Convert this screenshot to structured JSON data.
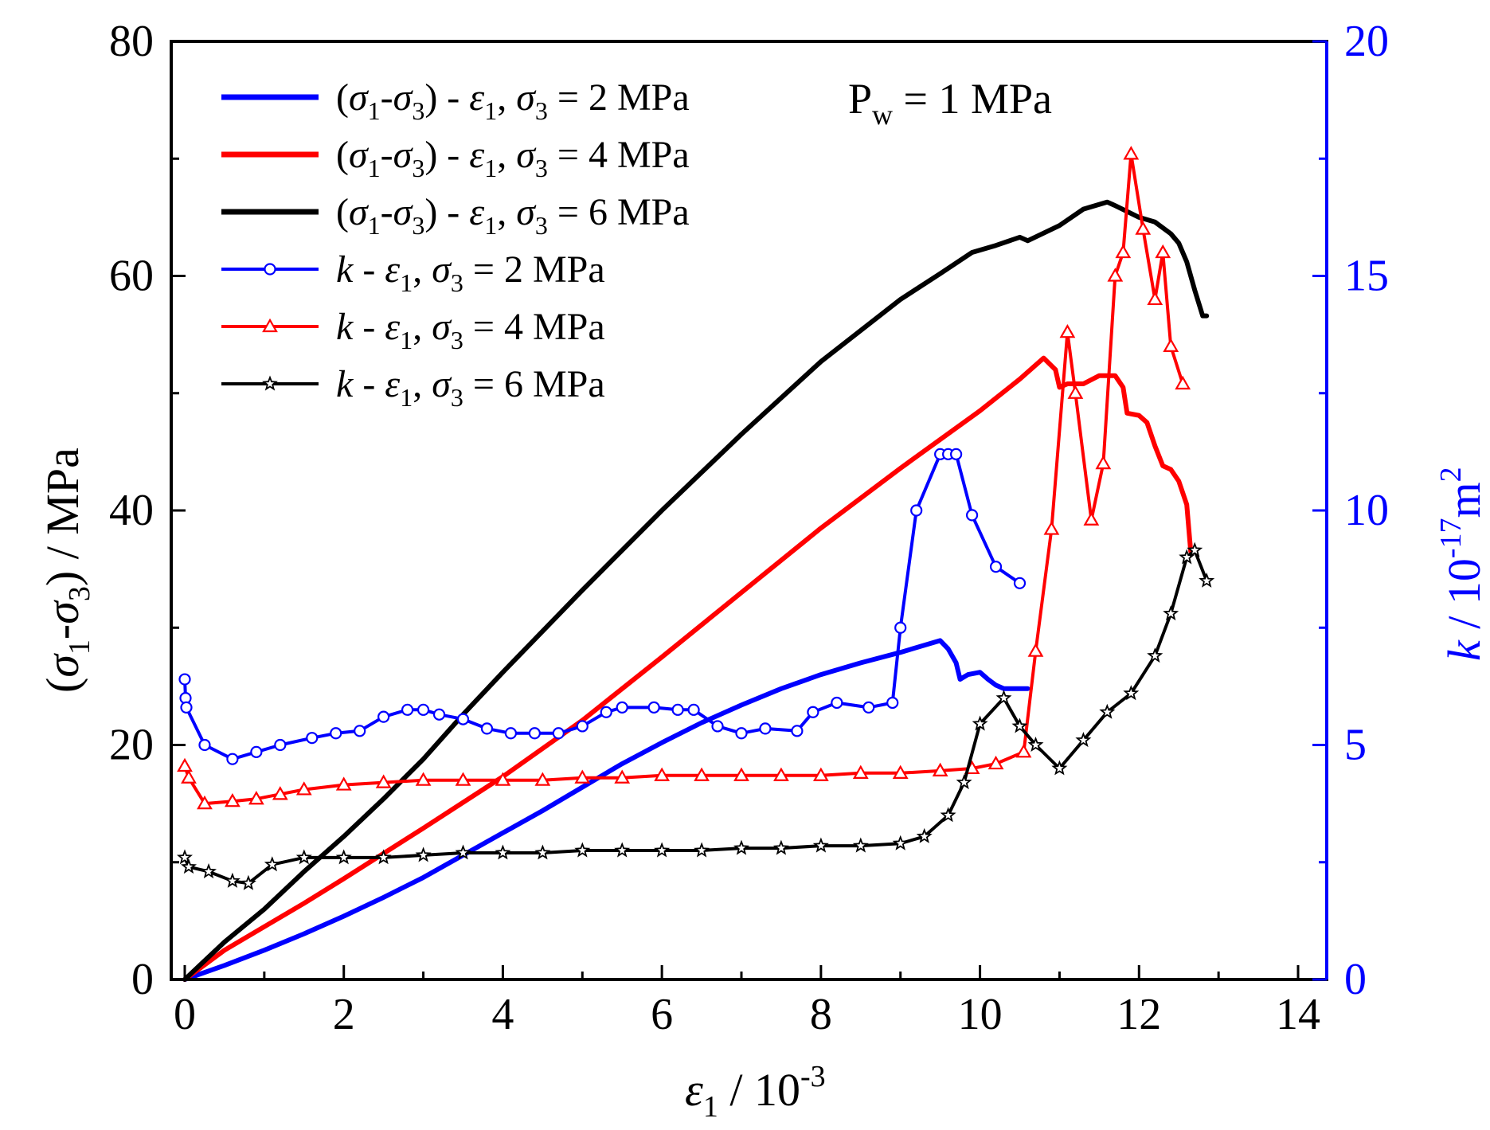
{
  "chart_data": {
    "type": "line",
    "annotation": "P_w = 1 MPa",
    "annotation_main": "P",
    "annotation_sub": "w",
    "annotation_rest": " = 1 MPa",
    "x_axis": {
      "label_sym": "ε",
      "label_sub": "1",
      "label_rest": " / 10",
      "label_sup": "-3",
      "range": [
        0,
        14
      ],
      "ticks": [
        0,
        2,
        4,
        6,
        8,
        10,
        12,
        14
      ]
    },
    "y_left": {
      "label_open": "(",
      "label_s1": "σ",
      "label_s1_sub": "1",
      "label_dash": "-",
      "label_s3": "σ",
      "label_s3_sub": "3",
      "label_close": ")",
      "label_rest": " / MPa",
      "range": [
        0,
        80
      ],
      "ticks": [
        0,
        20,
        40,
        60,
        80
      ]
    },
    "y_right": {
      "label_sym": "k",
      "label_rest": " / 10",
      "label_sup": "-17",
      "label_unit": "m",
      "label_unit_sup": "2",
      "range": [
        0,
        20
      ],
      "ticks": [
        0,
        5,
        10,
        15,
        20
      ],
      "color": "#0000ff"
    },
    "series": [
      {
        "name": "(σ1-σ3) - ε1, σ3 = 2 MPa",
        "legend_prefix": "(σ1-σ3) - ε1, σ3 = ",
        "legend_value": "2 MPa",
        "color": "#0000ff",
        "axis": "left",
        "marker": "none",
        "x": [
          0,
          0.5,
          1,
          1.5,
          2,
          2.5,
          3,
          3.5,
          4,
          4.5,
          5,
          5.5,
          6,
          6.5,
          7,
          7.5,
          8,
          8.5,
          9,
          9.3,
          9.5,
          9.6,
          9.7,
          9.75,
          9.85,
          10.0,
          10.1,
          10.2,
          10.3,
          10.4,
          10.5,
          10.6
        ],
        "y": [
          0,
          1.2,
          2.5,
          3.9,
          5.4,
          7.0,
          8.7,
          10.6,
          12.5,
          14.4,
          16.4,
          18.4,
          20.2,
          21.9,
          23.4,
          24.8,
          26.0,
          27.0,
          27.9,
          28.5,
          28.9,
          28.2,
          27.0,
          25.6,
          26.0,
          26.2,
          25.6,
          25.1,
          24.8,
          24.8,
          24.8,
          24.8
        ]
      },
      {
        "name": "(σ1-σ3) - ε1, σ3 = 4 MPa",
        "legend_prefix": "(σ1-σ3) - ε1, σ3 = ",
        "legend_value": "4 MPa",
        "color": "#ff0000",
        "axis": "left",
        "marker": "none",
        "x": [
          0,
          0.5,
          1,
          1.5,
          2,
          3,
          4,
          5,
          6,
          7,
          8,
          9,
          10,
          10.5,
          10.8,
          10.95,
          11.0,
          11.1,
          11.3,
          11.5,
          11.7,
          11.8,
          11.85,
          12.0,
          12.1,
          12.2,
          12.3,
          12.4,
          12.5,
          12.6,
          12.65
        ],
        "y": [
          0,
          2.5,
          4.5,
          6.5,
          8.6,
          12.9,
          17.3,
          22.1,
          27.5,
          33.0,
          38.5,
          43.6,
          48.5,
          51.2,
          53.0,
          52.0,
          50.5,
          50.8,
          50.8,
          51.5,
          51.5,
          50.5,
          48.3,
          48.1,
          47.5,
          45.5,
          43.8,
          43.5,
          42.5,
          40.5,
          36.5
        ]
      },
      {
        "name": "(σ1-σ3) - ε1, σ3 = 6 MPa",
        "legend_prefix": "(σ1-σ3) - ε1, σ3 = ",
        "legend_value": "6 MPa",
        "color": "#000000",
        "axis": "left",
        "marker": "none",
        "x": [
          0,
          0.5,
          1,
          1.5,
          2,
          2.5,
          3,
          3.5,
          4,
          5,
          6,
          7,
          8,
          9,
          9.5,
          9.9,
          10.2,
          10.5,
          10.6,
          11.0,
          11.3,
          11.6,
          11.7,
          12.0,
          12.2,
          12.4,
          12.5,
          12.6,
          12.7,
          12.8,
          12.85
        ],
        "y": [
          0,
          3.2,
          6.0,
          9.2,
          12.2,
          15.4,
          18.8,
          22.6,
          26.2,
          33.2,
          40.0,
          46.5,
          52.7,
          58.0,
          60.2,
          62.0,
          62.6,
          63.3,
          63.0,
          64.3,
          65.7,
          66.3,
          66.0,
          65.0,
          64.6,
          63.6,
          62.8,
          61.2,
          58.8,
          56.6,
          56.6
        ]
      },
      {
        "name": "k - ε1, σ3 = 2 MPa",
        "legend_prefix": "k - ε1, σ3 = ",
        "legend_value": "2 MPa",
        "color": "#0000ff",
        "axis": "right",
        "marker": "circle",
        "x": [
          0,
          0.01,
          0.02,
          0.25,
          0.6,
          0.9,
          1.2,
          1.6,
          1.9,
          2.2,
          2.5,
          2.8,
          3.0,
          3.2,
          3.5,
          3.8,
          4.1,
          4.4,
          4.7,
          5.0,
          5.3,
          5.5,
          5.9,
          6.2,
          6.4,
          6.7,
          7.0,
          7.3,
          7.7,
          7.9,
          8.2,
          8.6,
          8.9,
          9.0,
          9.2,
          9.5,
          9.6,
          9.7,
          9.9,
          10.2,
          10.5
        ],
        "y": [
          6.4,
          6.0,
          5.8,
          5.0,
          4.7,
          4.85,
          5.0,
          5.15,
          5.25,
          5.3,
          5.6,
          5.75,
          5.75,
          5.65,
          5.55,
          5.35,
          5.25,
          5.25,
          5.25,
          5.4,
          5.7,
          5.8,
          5.8,
          5.75,
          5.75,
          5.4,
          5.25,
          5.35,
          5.3,
          5.7,
          5.9,
          5.8,
          5.9,
          7.5,
          10.0,
          11.2,
          11.2,
          11.2,
          9.9,
          8.8,
          8.45
        ]
      },
      {
        "name": "k - ε1, σ3 = 4 MPa",
        "legend_prefix": "k - ε1, σ3 = ",
        "legend_value": "4 MPa",
        "color": "#ff0000",
        "axis": "right",
        "marker": "triangle",
        "x": [
          0,
          0.05,
          0.25,
          0.6,
          0.9,
          1.2,
          1.5,
          2.0,
          2.5,
          3.0,
          3.5,
          4.0,
          4.5,
          5.0,
          5.5,
          6.0,
          6.5,
          7.0,
          7.5,
          8.0,
          8.5,
          9.0,
          9.5,
          9.9,
          10.2,
          10.55,
          10.7,
          10.9,
          11.1,
          11.2,
          11.4,
          11.55,
          11.7,
          11.8,
          11.9,
          12.05,
          12.2,
          12.3,
          12.4,
          12.55
        ],
        "y": [
          4.55,
          4.3,
          3.75,
          3.8,
          3.85,
          3.95,
          4.05,
          4.15,
          4.2,
          4.25,
          4.25,
          4.25,
          4.25,
          4.3,
          4.3,
          4.35,
          4.35,
          4.35,
          4.35,
          4.35,
          4.4,
          4.4,
          4.45,
          4.5,
          4.6,
          4.85,
          7.0,
          9.6,
          13.8,
          12.5,
          9.8,
          11.0,
          15.0,
          15.5,
          17.6,
          16.0,
          14.5,
          15.5,
          13.5,
          12.7
        ]
      },
      {
        "name": "k - ε1, σ3 = 6 MPa",
        "legend_prefix": "k - ε1, σ3 = ",
        "legend_value": "6 MPa",
        "color": "#000000",
        "axis": "right",
        "marker": "star",
        "x": [
          0,
          0.05,
          0.3,
          0.6,
          0.8,
          1.1,
          1.5,
          2.0,
          2.5,
          3.0,
          3.5,
          4.0,
          4.5,
          5.0,
          5.5,
          6.0,
          6.5,
          7.0,
          7.5,
          8.0,
          8.5,
          9.0,
          9.3,
          9.6,
          9.8,
          10.0,
          10.3,
          10.5,
          10.7,
          11.0,
          11.3,
          11.6,
          11.9,
          12.2,
          12.4,
          12.6,
          12.7,
          12.85
        ],
        "y": [
          2.6,
          2.4,
          2.3,
          2.1,
          2.05,
          2.45,
          2.6,
          2.6,
          2.6,
          2.65,
          2.7,
          2.7,
          2.7,
          2.75,
          2.75,
          2.75,
          2.75,
          2.8,
          2.8,
          2.85,
          2.85,
          2.9,
          3.05,
          3.5,
          4.2,
          5.45,
          6.0,
          5.4,
          5.0,
          4.5,
          5.1,
          5.7,
          6.1,
          6.9,
          7.8,
          9.0,
          9.15,
          8.5
        ]
      }
    ]
  }
}
